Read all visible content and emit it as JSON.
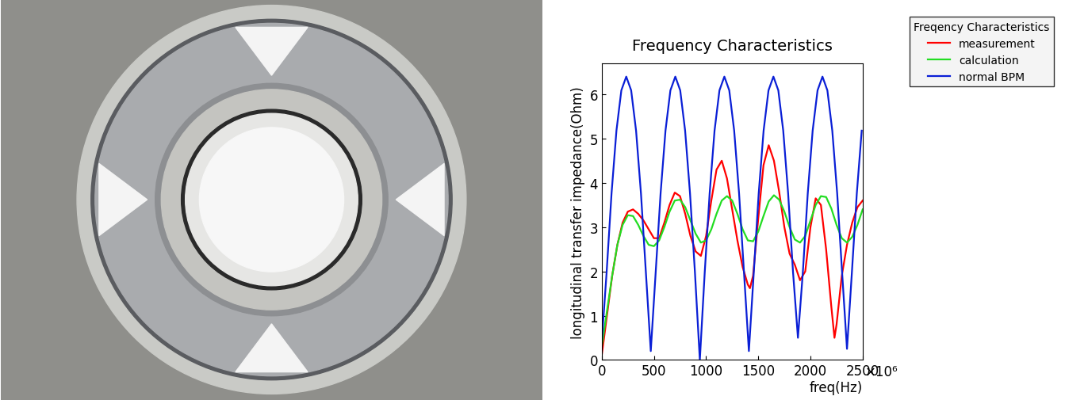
{
  "chart_data": {
    "type": "line",
    "title": "Frequency Characteristics",
    "x_label": "freq(Hz)",
    "y_label": "longitudinal transfer impedance(Ohm)",
    "annotations": [
      "×10⁶"
    ],
    "legend_title": "Freqency Characteristics",
    "legend": "upper right",
    "grid": false,
    "xlim": [
      0,
      2500
    ],
    "xticks": [
      0,
      500,
      1000,
      1500,
      2000,
      2500
    ],
    "ylim": [
      0,
      6.7
    ],
    "yticks": [
      0,
      1,
      2,
      3,
      4,
      5,
      6
    ],
    "series": [
      {
        "name": "measurement",
        "color": "#ff0000",
        "x": [
          0,
          50,
          100,
          150,
          200,
          250,
          300,
          350,
          400,
          450,
          500,
          550,
          600,
          650,
          700,
          750,
          800,
          850,
          900,
          950,
          1000,
          1050,
          1100,
          1150,
          1200,
          1250,
          1300,
          1350,
          1400,
          1420,
          1450,
          1500,
          1550,
          1600,
          1650,
          1700,
          1750,
          1800,
          1850,
          1900,
          1950,
          2000,
          2050,
          2100,
          2150,
          2200,
          2230,
          2250,
          2300,
          2350,
          2400,
          2450,
          2500
        ],
        "values": [
          0.1,
          1.0,
          1.9,
          2.6,
          3.1,
          3.35,
          3.4,
          3.3,
          3.15,
          2.95,
          2.75,
          2.75,
          3.1,
          3.5,
          3.78,
          3.7,
          3.3,
          2.8,
          2.45,
          2.35,
          2.8,
          3.6,
          4.3,
          4.5,
          4.1,
          3.4,
          2.7,
          2.1,
          1.7,
          1.62,
          1.9,
          3.2,
          4.4,
          4.85,
          4.5,
          3.8,
          3.0,
          2.4,
          2.15,
          1.8,
          2.0,
          3.0,
          3.65,
          3.5,
          2.5,
          1.2,
          0.5,
          0.8,
          1.9,
          2.6,
          3.1,
          3.45,
          3.6
        ]
      },
      {
        "name": "calculation",
        "color": "#22dd22",
        "x": [
          0,
          50,
          100,
          150,
          200,
          250,
          300,
          350,
          400,
          450,
          500,
          550,
          600,
          650,
          700,
          750,
          800,
          850,
          900,
          950,
          1000,
          1050,
          1100,
          1150,
          1200,
          1250,
          1300,
          1350,
          1400,
          1450,
          1500,
          1550,
          1600,
          1650,
          1700,
          1750,
          1800,
          1850,
          1900,
          1950,
          2000,
          2050,
          2100,
          2150,
          2200,
          2250,
          2300,
          2350,
          2400,
          2450,
          2500
        ],
        "values": [
          0.3,
          1.1,
          1.9,
          2.6,
          3.05,
          3.27,
          3.25,
          3.05,
          2.8,
          2.6,
          2.57,
          2.7,
          3.0,
          3.35,
          3.6,
          3.62,
          3.45,
          3.15,
          2.85,
          2.65,
          2.7,
          2.95,
          3.3,
          3.6,
          3.7,
          3.6,
          3.3,
          2.95,
          2.7,
          2.68,
          2.9,
          3.25,
          3.58,
          3.72,
          3.62,
          3.35,
          3.0,
          2.72,
          2.65,
          2.8,
          3.15,
          3.5,
          3.7,
          3.68,
          3.42,
          3.05,
          2.75,
          2.65,
          2.78,
          3.05,
          3.4
        ]
      },
      {
        "name": "normal BPM",
        "color": "#0a1fd6",
        "x": [
          0,
          47,
          94,
          141,
          188,
          235,
          282,
          329,
          376,
          423,
          470,
          517,
          564,
          611,
          658,
          705,
          752,
          799,
          846,
          893,
          940,
          987,
          1034,
          1081,
          1128,
          1175,
          1222,
          1269,
          1316,
          1363,
          1410,
          1457,
          1504,
          1551,
          1598,
          1645,
          1692,
          1739,
          1786,
          1833,
          1880,
          1927,
          1974,
          2021,
          2068,
          2115,
          2162,
          2209,
          2256,
          2303,
          2350,
          2397,
          2444,
          2491
        ],
        "values": [
          0.4,
          1.98,
          3.76,
          5.18,
          6.09,
          6.4,
          6.09,
          5.18,
          3.76,
          1.98,
          0.2,
          1.98,
          3.76,
          5.18,
          6.09,
          6.4,
          6.09,
          5.18,
          3.76,
          1.98,
          0.0,
          1.98,
          3.76,
          5.18,
          6.09,
          6.4,
          6.09,
          5.18,
          3.76,
          1.98,
          0.2,
          1.98,
          3.76,
          5.18,
          6.09,
          6.4,
          6.09,
          5.18,
          3.76,
          1.98,
          0.5,
          1.98,
          3.76,
          5.18,
          6.09,
          6.4,
          6.09,
          5.18,
          3.76,
          1.98,
          0.25,
          1.98,
          3.76,
          5.18
        ]
      }
    ]
  }
}
